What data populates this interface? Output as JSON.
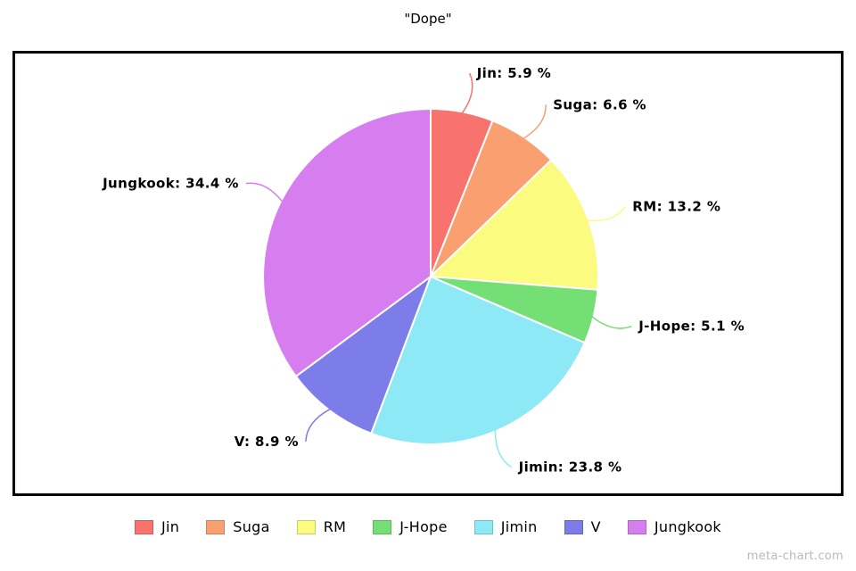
{
  "title": "\"Dope\"",
  "watermark": "meta-chart.com",
  "chart_data": {
    "type": "pie",
    "title": "\"Dope\"",
    "start_angle_deg": 0,
    "direction": "clockwise",
    "legend_position": "bottom",
    "slices": [
      {
        "label": "Jin",
        "value": 5.9,
        "display": "Jin: 5.9 %",
        "color": "#f8736e"
      },
      {
        "label": "Suga",
        "value": 6.6,
        "display": "Suga: 6.6 %",
        "color": "#fa9f70"
      },
      {
        "label": "RM",
        "value": 13.2,
        "display": "RM: 13.2 %",
        "color": "#fbfb7f"
      },
      {
        "label": "J-Hope",
        "value": 5.1,
        "display": "J-Hope: 5.1 %",
        "color": "#74df74"
      },
      {
        "label": "Jimin",
        "value": 23.8,
        "display": "Jimin: 23.8 %",
        "color": "#8ce9f5"
      },
      {
        "label": "V",
        "value": 8.9,
        "display": "V: 8.9 %",
        "color": "#7d7de9"
      },
      {
        "label": "Jungkook",
        "value": 34.4,
        "display": "Jungkook: 34.4 %",
        "color": "#d67ef0"
      }
    ]
  }
}
